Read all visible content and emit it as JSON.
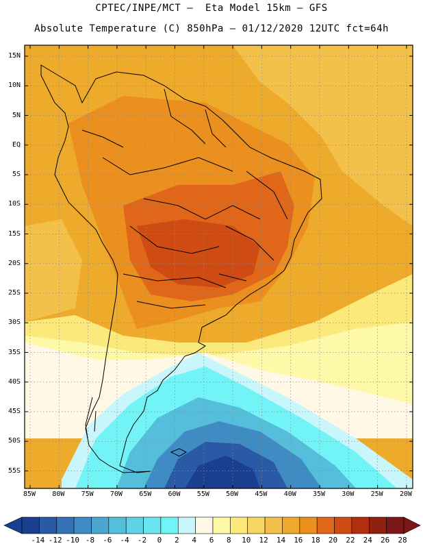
{
  "header": {
    "line1": "CPTEC/INPE/MCT –  Eta Model 15km – GFS",
    "line2": "Absolute Temperature (C) 850hPa – 01/12/2020 12UTC fct=64h"
  },
  "axes": {
    "lat_labels": [
      "15N",
      "10N",
      "5N",
      "EQ",
      "5S",
      "10S",
      "15S",
      "20S",
      "25S",
      "30S",
      "35S",
      "40S",
      "45S",
      "50S",
      "55S"
    ],
    "lon_labels": [
      "85W",
      "80W",
      "75W",
      "70W",
      "65W",
      "60W",
      "55W",
      "50W",
      "45W",
      "40W",
      "35W",
      "30W",
      "25W",
      "20W"
    ]
  },
  "legend": {
    "labels": [
      "-14",
      "-12",
      "-10",
      "-8",
      "-6",
      "-4",
      "-2",
      "0",
      "2",
      "4",
      "6",
      "8",
      "10",
      "12",
      "14",
      "16",
      "18",
      "20",
      "22",
      "24",
      "26",
      "28"
    ],
    "colors": [
      "#1b3f8f",
      "#2a5aa6",
      "#3472b6",
      "#3f8cc4",
      "#4aa6cf",
      "#55bfdb",
      "#5fd3e6",
      "#6ae4ee",
      "#72f4f6",
      "#c8f6fb",
      "#fff8e6",
      "#fef9a8",
      "#fbe97c",
      "#f7d663",
      "#f3c04a",
      "#eeaa2b",
      "#eb8f1e",
      "#e0661a",
      "#cf4b14",
      "#b22e0f",
      "#902010",
      "#7a1818"
    ],
    "low_color": "#1b3f8f",
    "high_color": "#7a1818"
  },
  "map_colors": {
    "warm_bg": "#eeaa2b",
    "orange": "#eb8f1e",
    "dark_orange": "#e0661a",
    "red": "#cf4b14",
    "gold": "#f3c04a",
    "light_yellow": "#fbe97c",
    "pale_yellow": "#fef9a8",
    "cream": "#fff8e6",
    "pale_cyan": "#c8f6fb",
    "cyan": "#72f4f6",
    "light_blue": "#55bfdb",
    "mid_blue": "#3f8cc4",
    "dark_blue": "#2a5aa6",
    "navy": "#1b3f8f"
  }
}
